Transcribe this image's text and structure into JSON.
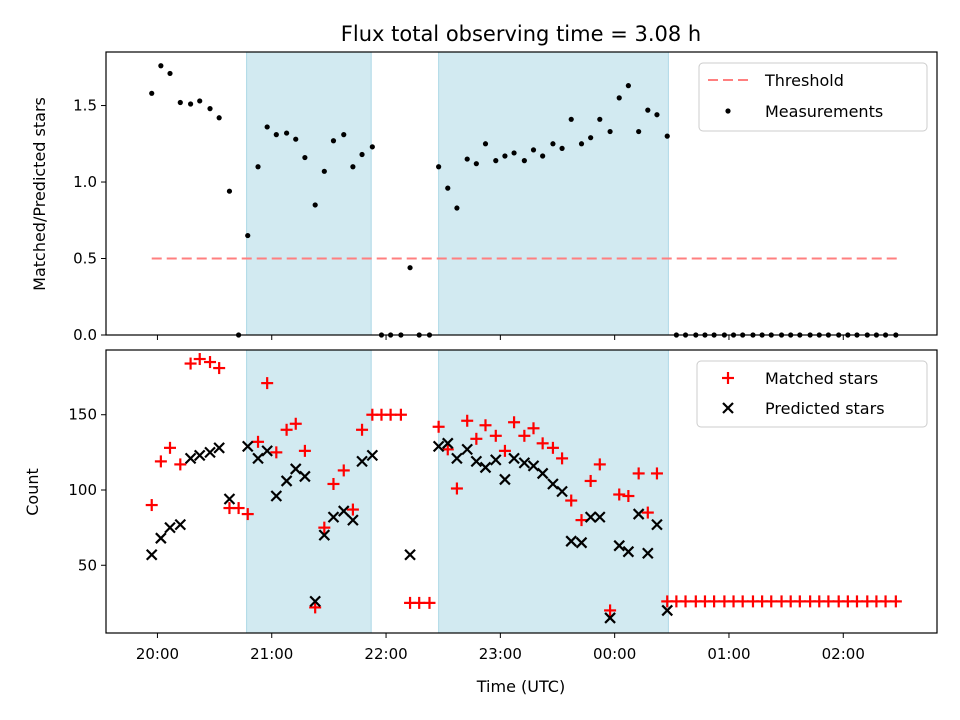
{
  "chart_data": {
    "title": "Flux total observing time = 3.08 h",
    "x_axis": {
      "label": "Time (UTC)",
      "ticks": [
        "20:00",
        "21:00",
        "22:00",
        "23:00",
        "00:00",
        "01:00",
        "02:00"
      ],
      "tick_hours": [
        20,
        21,
        22,
        23,
        24,
        25,
        26
      ],
      "range_hours": [
        19.55,
        26.82
      ]
    },
    "shaded_intervals": [
      {
        "start": 20.78,
        "end": 21.87,
        "color": "#add8e6"
      },
      {
        "start": 22.46,
        "end": 24.47,
        "color": "#add8e6"
      }
    ],
    "panels": [
      {
        "type": "scatter",
        "ylabel": "Matched/Predicted stars",
        "ylim": [
          0,
          1.85
        ],
        "yticks": [
          0.0,
          0.5,
          1.0,
          1.5
        ],
        "ytick_labels": [
          "0.0",
          "0.5",
          "1.0",
          "1.5"
        ],
        "legend": {
          "position": "upper-right",
          "entries": [
            "Threshold",
            "Measurements"
          ]
        },
        "threshold": {
          "name": "Threshold",
          "value": 0.5,
          "x_start": 19.95,
          "x_end": 26.5,
          "color": "#ff7f7f"
        },
        "series": [
          {
            "name": "Measurements",
            "marker": "dot",
            "color": "#000000",
            "x": [
              19.95,
              20.03,
              20.11,
              20.2,
              20.29,
              20.37,
              20.46,
              20.54,
              20.63,
              20.71,
              20.79,
              20.88,
              20.96,
              21.04,
              21.13,
              21.21,
              21.29,
              21.38,
              21.46,
              21.54,
              21.63,
              21.71,
              21.79,
              21.88,
              21.96,
              22.04,
              22.13,
              22.21,
              22.29,
              22.38,
              22.46,
              22.54,
              22.62,
              22.71,
              22.79,
              22.87,
              22.96,
              23.04,
              23.12,
              23.21,
              23.29,
              23.37,
              23.46,
              23.54,
              23.62,
              23.71,
              23.79,
              23.87,
              23.96,
              24.04,
              24.12,
              24.21,
              24.29,
              24.37,
              24.46,
              24.54,
              24.62,
              24.71,
              24.79,
              24.87,
              24.96,
              25.04,
              25.12,
              25.21,
              25.29,
              25.37,
              25.46,
              25.54,
              25.62,
              25.71,
              25.79,
              25.87,
              25.96,
              26.04,
              26.12,
              26.21,
              26.29,
              26.37,
              26.46
            ],
            "y": [
              1.58,
              1.76,
              1.71,
              1.52,
              1.51,
              1.53,
              1.48,
              1.42,
              0.94,
              0.0,
              0.65,
              1.1,
              1.36,
              1.31,
              1.32,
              1.28,
              1.16,
              0.85,
              1.07,
              1.27,
              1.31,
              1.1,
              1.18,
              1.23,
              0.0,
              0.0,
              0.0,
              0.44,
              0.0,
              0.0,
              1.1,
              0.96,
              0.83,
              1.15,
              1.12,
              1.25,
              1.14,
              1.17,
              1.19,
              1.14,
              1.21,
              1.17,
              1.25,
              1.22,
              1.41,
              1.25,
              1.29,
              1.41,
              1.33,
              1.55,
              1.63,
              1.33,
              1.47,
              1.44,
              1.3,
              0.0,
              0.0,
              0.0,
              0.0,
              0.0,
              0.0,
              0.0,
              0.0,
              0.0,
              0.0,
              0.0,
              0.0,
              0.0,
              0.0,
              0.0,
              0.0,
              0.0,
              0.0,
              0.0,
              0.0,
              0.0,
              0.0,
              0.0,
              0.0
            ]
          }
        ]
      },
      {
        "type": "scatter",
        "ylabel": "Count",
        "ylim": [
          5,
          193
        ],
        "yticks": [
          50,
          100,
          150
        ],
        "ytick_labels": [
          "50",
          "100",
          "150"
        ],
        "legend": {
          "position": "upper-right",
          "entries": [
            "Matched stars",
            "Predicted stars"
          ]
        },
        "series": [
          {
            "name": "Matched stars",
            "marker": "plus",
            "color": "#ff0000",
            "x": [
              19.95,
              20.03,
              20.11,
              20.2,
              20.29,
              20.37,
              20.46,
              20.54,
              20.63,
              20.71,
              20.79,
              20.88,
              20.96,
              21.04,
              21.13,
              21.21,
              21.29,
              21.38,
              21.46,
              21.54,
              21.63,
              21.71,
              21.79,
              21.88,
              21.96,
              22.04,
              22.13,
              22.21,
              22.29,
              22.38,
              22.46,
              22.54,
              22.62,
              22.71,
              22.79,
              22.87,
              22.96,
              23.04,
              23.12,
              23.21,
              23.29,
              23.37,
              23.46,
              23.54,
              23.62,
              23.71,
              23.79,
              23.87,
              23.96,
              24.04,
              24.12,
              24.21,
              24.29,
              24.37,
              24.46,
              24.54,
              24.62,
              24.71,
              24.79,
              24.87,
              24.96,
              25.04,
              25.12,
              25.21,
              25.29,
              25.37,
              25.46,
              25.54,
              25.62,
              25.71,
              25.79,
              25.87,
              25.96,
              26.04,
              26.12,
              26.21,
              26.29,
              26.37,
              26.46
            ],
            "y": [
              90,
              119,
              128,
              117,
              184,
              187,
              185,
              181,
              88,
              88,
              84,
              132,
              171,
              125,
              140,
              144,
              126,
              22,
              75,
              104,
              113,
              87,
              140,
              150,
              150,
              150,
              150,
              25,
              25,
              25,
              142,
              127,
              101,
              146,
              134,
              143,
              136,
              126,
              145,
              136,
              141,
              131,
              128,
              121,
              93,
              80,
              106,
              117,
              20,
              97,
              96,
              111,
              85,
              111,
              26,
              26,
              26,
              26,
              26,
              26,
              26,
              26,
              26,
              26,
              26,
              26,
              26,
              26,
              26,
              26,
              26,
              26,
              26,
              26,
              26,
              26,
              26,
              26,
              26
            ]
          },
          {
            "name": "Predicted stars",
            "marker": "x",
            "color": "#000000",
            "x": [
              19.95,
              20.03,
              20.11,
              20.2,
              20.29,
              20.37,
              20.46,
              20.54,
              20.63,
              20.79,
              20.88,
              20.96,
              21.04,
              21.13,
              21.21,
              21.29,
              21.38,
              21.46,
              21.54,
              21.63,
              21.71,
              21.79,
              21.88,
              22.21,
              22.46,
              22.54,
              22.62,
              22.71,
              22.79,
              22.87,
              22.96,
              23.04,
              23.12,
              23.21,
              23.29,
              23.37,
              23.46,
              23.54,
              23.62,
              23.71,
              23.79,
              23.87,
              23.96,
              24.04,
              24.12,
              24.21,
              24.29,
              24.37,
              24.46
            ],
            "y": [
              57,
              68,
              75,
              77,
              121,
              123,
              125,
              128,
              94,
              129,
              121,
              126,
              96,
              106,
              114,
              109,
              26,
              70,
              82,
              86,
              80,
              119,
              123,
              57,
              129,
              131,
              121,
              127,
              119,
              115,
              120,
              107,
              121,
              118,
              116,
              111,
              104,
              99,
              66,
              65,
              82,
              82,
              15,
              63,
              59,
              84,
              58,
              77,
              20
            ]
          }
        ]
      }
    ]
  }
}
